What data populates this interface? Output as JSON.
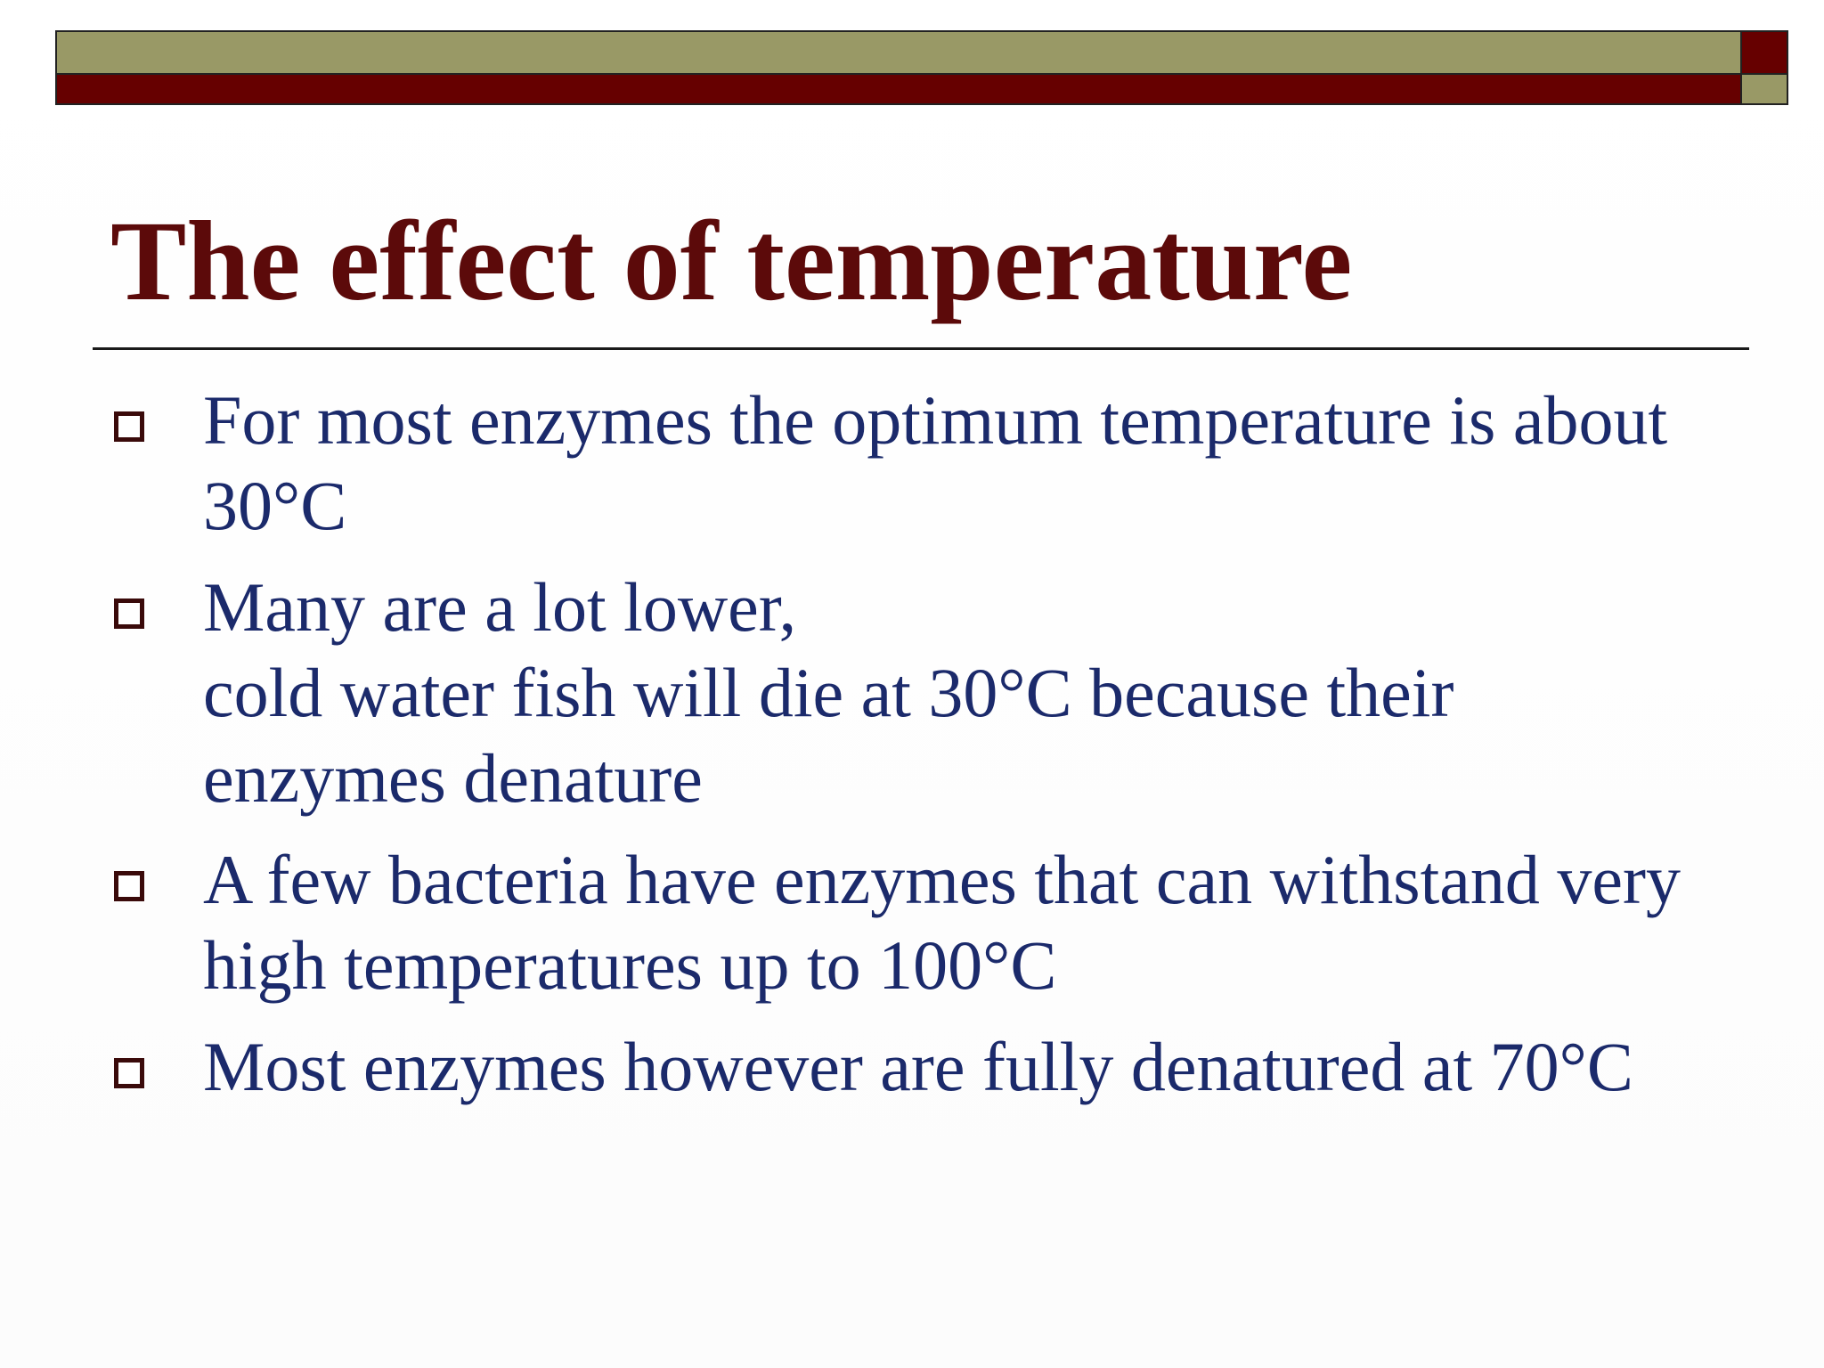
{
  "slide": {
    "title": "The effect of temperature",
    "bullets": [
      {
        "text": "For most enzymes the optimum temperature is about\n30°C"
      },
      {
        "text": "Many are a lot lower,\ncold water fish will die at 30°C because their\nenzymes denature"
      },
      {
        "text": "A few bacteria have enzymes that can withstand very\nhigh temperatures up to 100°C"
      },
      {
        "text": "Most enzymes however are fully denatured at 70°C"
      }
    ]
  },
  "colors": {
    "title": "#5c0a0a",
    "body_text": "#1b2a6b",
    "band_olive": "#999966",
    "band_red": "#660000"
  }
}
